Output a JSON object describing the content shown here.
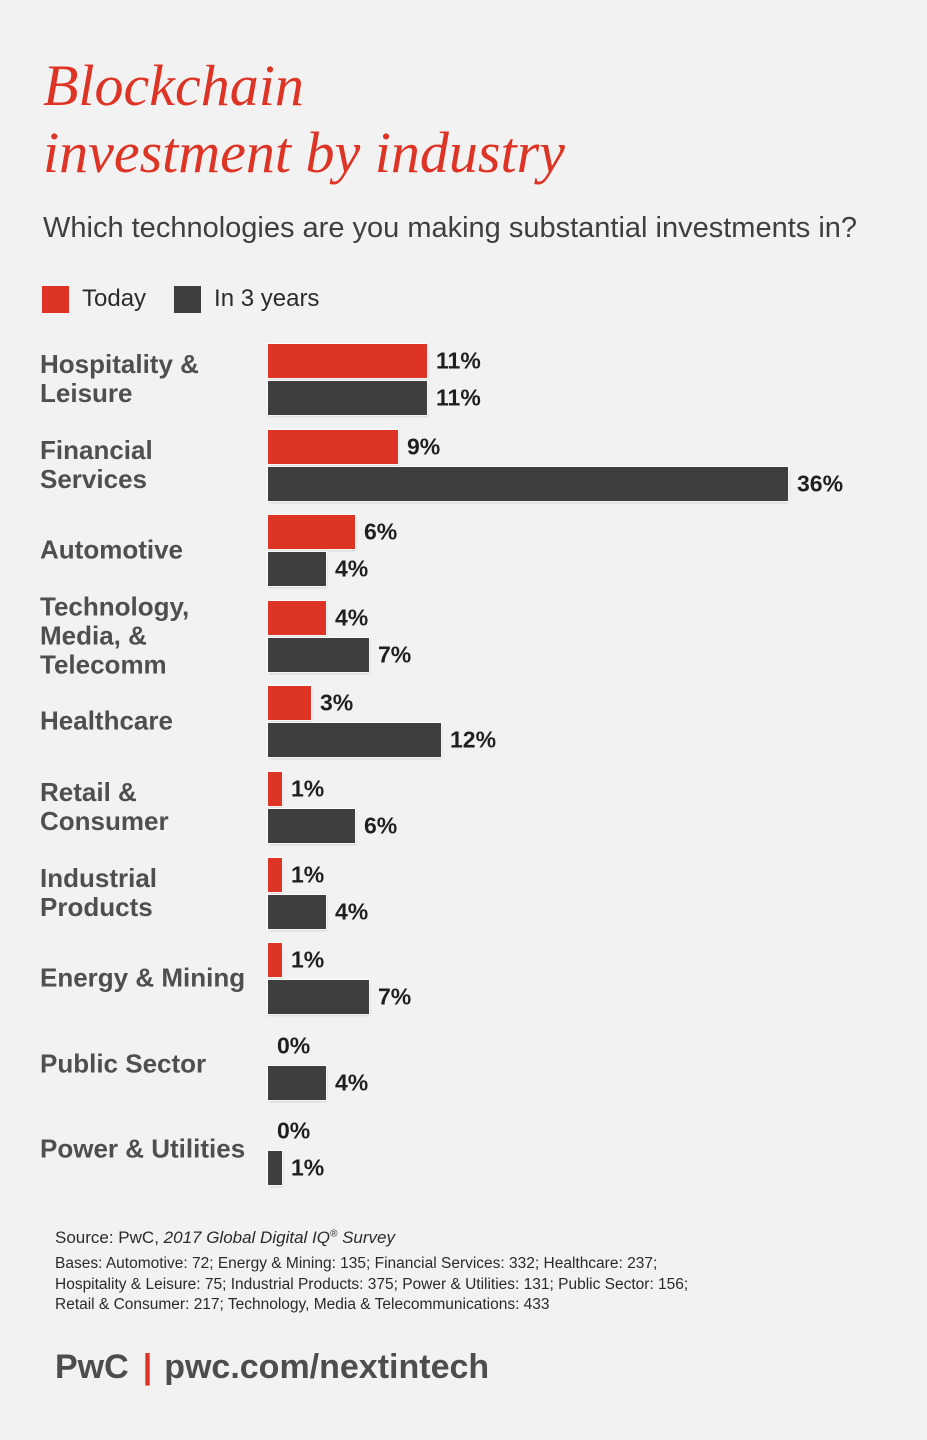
{
  "page": {
    "background": "#f2f2f2",
    "accent_red": "#dd3425",
    "bar_gray": "#3e3e3e"
  },
  "header": {
    "title_line1": "Blockchain",
    "title_line2": "investment by industry",
    "subtitle": "Which technologies are you making substantial investments in?"
  },
  "legend": {
    "items": [
      {
        "label": "Today",
        "color": "#dd3425"
      },
      {
        "label": "In 3 years",
        "color": "#3e3e3e"
      }
    ]
  },
  "chart_data": {
    "type": "bar",
    "orientation": "horizontal",
    "unit": "percent",
    "value_suffix": "%",
    "xlim": [
      0,
      36
    ],
    "grid": false,
    "legend_position": "top",
    "categories": [
      "Hospitality & Leisure",
      "Financial Services",
      "Automotive",
      "Technology, Media, & Telecomm",
      "Healthcare",
      "Retail & Consumer",
      "Industrial Products",
      "Energy & Mining",
      "Public Sector",
      "Power & Utilities"
    ],
    "category_label_lines": [
      [
        "Hospitality &",
        "Leisure"
      ],
      [
        "Financial",
        "Services"
      ],
      [
        "Automotive"
      ],
      [
        "Technology,",
        "Media, &",
        "Telecomm"
      ],
      [
        "Healthcare"
      ],
      [
        "Retail &",
        "Consumer"
      ],
      [
        "Industrial",
        "Products"
      ],
      [
        "Energy & Mining"
      ],
      [
        "Public Sector"
      ],
      [
        "Power & Utilities"
      ]
    ],
    "series": [
      {
        "name": "Today",
        "color": "#dd3425",
        "values": [
          11,
          9,
          6,
          4,
          3,
          1,
          1,
          1,
          0,
          0
        ]
      },
      {
        "name": "In 3 years",
        "color": "#3e3e3e",
        "values": [
          11,
          36,
          4,
          7,
          12,
          6,
          4,
          7,
          4,
          1
        ]
      }
    ]
  },
  "source": {
    "prefix": "Source: PwC, ",
    "italic_title": "2017 Global Digital IQ",
    "registered": "®",
    "italic_suffix": " Survey",
    "bases_lines": [
      "Bases: Automotive: 72; Energy & Mining: 135; Financial Services: 332; Healthcare: 237;",
      "Hospitality & Leisure: 75; Industrial Products: 375; Power & Utilities: 131; Public Sector: 156;",
      "Retail & Consumer: 217; Technology, Media & Telecommunications: 433"
    ]
  },
  "footer": {
    "brand": "PwC",
    "separator": "|",
    "url": "pwc.com/nextintech"
  }
}
